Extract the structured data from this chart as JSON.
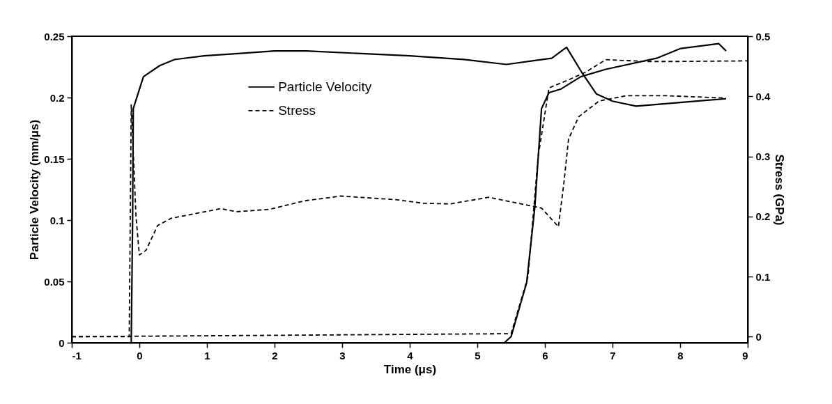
{
  "chart_data": {
    "type": "line",
    "xlabel": "Time (μs)",
    "ylabel": "Particle Velocity (mm/μs)",
    "y2label": "Stress (GPa)",
    "xlim": [
      -1,
      9
    ],
    "xticks": [
      -1,
      0,
      1,
      2,
      3,
      4,
      5,
      6,
      7,
      8,
      9
    ],
    "ylim": [
      0,
      0.25
    ],
    "yticks": [
      0,
      0.05,
      0.1,
      0.15,
      0.2,
      0.25
    ],
    "y2lim": [
      -0.01,
      0.5
    ],
    "y2ticks": [
      0,
      0.1,
      0.2,
      0.3,
      0.4,
      0.5
    ],
    "legend": "top left",
    "grid": false,
    "series": [
      {
        "name": "Particle Velocity",
        "color": "#000000",
        "line_style": "solid",
        "x": [
          -1,
          -0.12,
          -0.1,
          -0.09,
          0.06,
          0.3,
          0.52,
          0.96,
          1.5,
          2.0,
          2.47,
          3.23,
          4.0,
          4.8,
          5.43,
          6.1,
          6.32,
          6.54,
          6.76,
          7.0,
          7.35,
          8.0,
          8.68
        ],
        "values": [
          0,
          0,
          0.1,
          0.191,
          0.217,
          0.226,
          0.231,
          0.234,
          0.236,
          0.238,
          0.238,
          0.236,
          0.234,
          0.231,
          0.227,
          0.232,
          0.241,
          0.221,
          0.203,
          0.197,
          0.193,
          0.196,
          0.199
        ]
      },
      {
        "name": "Stress",
        "color": "#000000",
        "line_style": "dashed",
        "axis": "y2",
        "x": [
          -1,
          -0.15,
          -0.12,
          -0.05,
          0.0,
          0.1,
          0.27,
          0.47,
          1.2,
          1.44,
          1.93,
          2.44,
          2.98,
          3.8,
          4.2,
          4.6,
          5.17,
          5.6,
          5.95,
          6.2,
          6.28,
          6.35,
          6.5,
          6.8,
          7.2,
          7.8,
          8.68
        ],
        "values": [
          0,
          0,
          0.386,
          0.2,
          0.136,
          0.144,
          0.185,
          0.197,
          0.213,
          0.208,
          0.212,
          0.226,
          0.234,
          0.228,
          0.222,
          0.221,
          0.232,
          0.222,
          0.214,
          0.183,
          0.255,
          0.329,
          0.366,
          0.392,
          0.401,
          0.401,
          0.397
        ]
      },
      {
        "color": "#000000",
        "line_style": "solid",
        "x": [
          -1,
          5.4,
          5.5,
          5.73,
          5.85,
          5.95,
          6.06,
          6.24,
          6.53,
          6.9,
          7.65,
          8.01,
          8.57,
          8.68
        ],
        "values": [
          0,
          0,
          0.005,
          0.049,
          0.11,
          0.191,
          0.204,
          0.207,
          0.217,
          0.223,
          0.232,
          0.24,
          0.244,
          0.238
        ]
      },
      {
        "color": "#000000",
        "line_style": "dashed",
        "axis": "y2",
        "x": [
          -1,
          5.5,
          5.75,
          5.9,
          6.06,
          6.3,
          6.6,
          6.9,
          7.5,
          8.0,
          9.0
        ],
        "values": [
          0,
          0.005,
          0.1,
          0.3,
          0.414,
          0.425,
          0.44,
          0.461,
          0.458,
          0.458,
          0.459
        ]
      }
    ]
  }
}
